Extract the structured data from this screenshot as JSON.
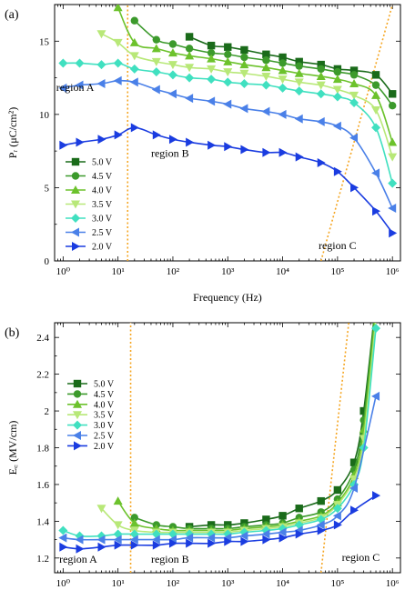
{
  "chart_data": [
    {
      "type": "line",
      "panel_label": "(a)",
      "xscale": "log",
      "xlim": [
        0.7,
        1400000
      ],
      "ylim": [
        0,
        17.5
      ],
      "xticks": [
        1,
        10,
        100,
        1000,
        10000,
        100000,
        1000000
      ],
      "xtick_labels": [
        "10⁰",
        "10¹",
        "10²",
        "10³",
        "10⁴",
        "10⁵",
        "10⁶"
      ],
      "yticks": [
        0,
        5,
        10,
        15
      ],
      "ytick_labels": [
        "0",
        "5",
        "10",
        "15"
      ],
      "xlabel": "Frequency (Hz)",
      "ylabel": "Pᵣ (μC/cm²)",
      "legend_position": "bottom-left",
      "grid": false,
      "series": [
        {
          "name": "5.0 V",
          "color": "#1a6b1a",
          "marker": "square",
          "x": [
            200,
            500,
            1000,
            2000,
            5000,
            10000,
            20000,
            50000,
            100000,
            200000,
            500000,
            1000000
          ],
          "y": [
            15.3,
            14.7,
            14.6,
            14.4,
            14.1,
            13.9,
            13.6,
            13.4,
            13.1,
            13.0,
            12.7,
            11.4
          ]
        },
        {
          "name": "4.5 V",
          "color": "#3c9a2c",
          "marker": "circle",
          "x": [
            20,
            50,
            100,
            200,
            500,
            1000,
            2000,
            5000,
            10000,
            20000,
            50000,
            100000,
            200000,
            500000,
            1000000
          ],
          "y": [
            16.4,
            15.1,
            14.8,
            14.5,
            14.2,
            14.1,
            13.9,
            13.7,
            13.5,
            13.3,
            13.1,
            12.9,
            12.7,
            12.0,
            10.6
          ]
        },
        {
          "name": "4.0 V",
          "color": "#6cc22c",
          "marker": "triangle-up",
          "x": [
            10,
            20,
            50,
            100,
            200,
            500,
            1000,
            2000,
            5000,
            10000,
            20000,
            50000,
            100000,
            200000,
            500000,
            1000000
          ],
          "y": [
            17.3,
            14.9,
            14.5,
            14.2,
            14.0,
            13.8,
            13.6,
            13.4,
            13.2,
            13.0,
            12.8,
            12.6,
            12.4,
            12.1,
            11.3,
            8.1
          ]
        },
        {
          "name": "3.5 V",
          "color": "#b8e878",
          "marker": "triangle-down",
          "x": [
            5,
            10,
            20,
            50,
            100,
            200,
            500,
            1000,
            2000,
            5000,
            10000,
            20000,
            50000,
            100000,
            200000,
            500000,
            1000000
          ],
          "y": [
            15.5,
            14.9,
            14.0,
            13.6,
            13.4,
            13.2,
            13.1,
            12.9,
            12.8,
            12.6,
            12.4,
            12.2,
            12.0,
            11.7,
            11.3,
            10.3,
            7.1
          ]
        },
        {
          "name": "3.0 V",
          "color": "#40e0c0",
          "marker": "diamond",
          "x": [
            1,
            2,
            5,
            10,
            20,
            50,
            100,
            200,
            500,
            1000,
            2000,
            5000,
            10000,
            20000,
            50000,
            100000,
            200000,
            500000,
            1000000
          ],
          "y": [
            13.5,
            13.5,
            13.4,
            13.5,
            13.1,
            12.9,
            12.7,
            12.5,
            12.4,
            12.2,
            12.1,
            12.0,
            11.8,
            11.6,
            11.4,
            11.2,
            10.8,
            9.1,
            5.3
          ]
        },
        {
          "name": "2.5 V",
          "color": "#4a80e8",
          "marker": "triangle-left",
          "x": [
            1,
            2,
            5,
            10,
            20,
            50,
            100,
            200,
            500,
            1000,
            2000,
            5000,
            10000,
            20000,
            50000,
            100000,
            200000,
            500000,
            1000000
          ],
          "y": [
            11.8,
            12.0,
            12.1,
            12.3,
            12.2,
            11.7,
            11.4,
            11.1,
            10.9,
            10.7,
            10.4,
            10.2,
            10.0,
            9.7,
            9.5,
            9.2,
            8.4,
            6.0,
            3.6
          ]
        },
        {
          "name": "2.0 V",
          "color": "#1a3ce0",
          "marker": "triangle-right",
          "x": [
            1,
            2,
            5,
            10,
            20,
            50,
            100,
            200,
            500,
            1000,
            2000,
            5000,
            10000,
            20000,
            50000,
            100000,
            200000,
            500000,
            1000000
          ],
          "y": [
            7.9,
            8.1,
            8.3,
            8.6,
            9.1,
            8.6,
            8.3,
            8.1,
            7.9,
            7.8,
            7.6,
            7.4,
            7.4,
            7.1,
            6.7,
            6.1,
            5.0,
            3.4,
            1.9
          ]
        }
      ],
      "annotations": [
        {
          "text": "region A",
          "x": 0.75,
          "y": 11.6
        },
        {
          "text": "region B",
          "x": 40,
          "y": 7.1
        },
        {
          "text": "region C",
          "x": 45000,
          "y": 0.8
        }
      ],
      "boundaries": [
        {
          "x": [
            15,
            15
          ],
          "y": [
            0,
            17.5
          ]
        },
        {
          "x": [
            50000,
            1000000
          ],
          "y": [
            0,
            17.5
          ]
        }
      ]
    },
    {
      "type": "line",
      "panel_label": "(b)",
      "xscale": "log",
      "xlim": [
        0.7,
        1400000
      ],
      "ylim": [
        1.12,
        2.48
      ],
      "xticks": [
        1,
        10,
        100,
        1000,
        10000,
        100000,
        1000000
      ],
      "xtick_labels": [
        "10⁰",
        "10¹",
        "10²",
        "10³",
        "10⁴",
        "10⁵",
        "10⁶"
      ],
      "yticks": [
        1.2,
        1.4,
        1.6,
        1.8,
        2.0,
        2.2,
        2.4
      ],
      "ytick_labels": [
        "1.2",
        "1.4",
        "1.6",
        "1.8",
        "2",
        "2.2",
        "2.4"
      ],
      "ylabel": "E꜀ (MV/cm)",
      "legend_position": "top-left",
      "grid": false,
      "series": [
        {
          "name": "5.0 V",
          "color": "#1a6b1a",
          "marker": "square",
          "x": [
            200,
            500,
            1000,
            2000,
            5000,
            10000,
            20000,
            50000,
            100000,
            200000,
            300000,
            500000
          ],
          "y": [
            1.37,
            1.38,
            1.38,
            1.39,
            1.41,
            1.43,
            1.47,
            1.51,
            1.57,
            1.72,
            2.0,
            2.6
          ]
        },
        {
          "name": "4.5 V",
          "color": "#3c9a2c",
          "marker": "circle",
          "x": [
            20,
            50,
            100,
            200,
            500,
            1000,
            2000,
            5000,
            10000,
            20000,
            50000,
            100000,
            200000,
            300000,
            500000
          ],
          "y": [
            1.42,
            1.38,
            1.37,
            1.36,
            1.36,
            1.36,
            1.37,
            1.38,
            1.39,
            1.42,
            1.45,
            1.52,
            1.68,
            1.95,
            2.6
          ]
        },
        {
          "name": "4.0 V",
          "color": "#6cc22c",
          "marker": "triangle-up",
          "x": [
            10,
            20,
            50,
            100,
            200,
            500,
            1000,
            2000,
            5000,
            10000,
            20000,
            50000,
            100000,
            200000,
            300000,
            500000
          ],
          "y": [
            1.51,
            1.39,
            1.36,
            1.35,
            1.35,
            1.35,
            1.35,
            1.36,
            1.37,
            1.38,
            1.4,
            1.43,
            1.5,
            1.65,
            1.9,
            2.55
          ]
        },
        {
          "name": "3.5 V",
          "color": "#b8e878",
          "marker": "triangle-down",
          "x": [
            5,
            10,
            20,
            50,
            100,
            200,
            500,
            1000,
            2000,
            5000,
            10000,
            20000,
            50000,
            100000,
            200000,
            300000,
            500000
          ],
          "y": [
            1.47,
            1.38,
            1.35,
            1.34,
            1.34,
            1.34,
            1.34,
            1.34,
            1.35,
            1.36,
            1.37,
            1.39,
            1.42,
            1.49,
            1.63,
            1.85,
            2.5
          ]
        },
        {
          "name": "3.0 V",
          "color": "#40e0c0",
          "marker": "diamond",
          "x": [
            1,
            2,
            5,
            10,
            20,
            50,
            100,
            200,
            500,
            1000,
            2000,
            5000,
            10000,
            20000,
            50000,
            100000,
            200000,
            300000,
            500000
          ],
          "y": [
            1.35,
            1.32,
            1.32,
            1.33,
            1.33,
            1.33,
            1.33,
            1.33,
            1.33,
            1.33,
            1.34,
            1.35,
            1.36,
            1.38,
            1.41,
            1.47,
            1.6,
            1.8,
            2.45
          ]
        },
        {
          "name": "2.5 V",
          "color": "#4a80e8",
          "marker": "triangle-left",
          "x": [
            1,
            2,
            5,
            10,
            20,
            50,
            100,
            200,
            500,
            1000,
            2000,
            5000,
            10000,
            20000,
            50000,
            100000,
            200000,
            500000
          ],
          "y": [
            1.31,
            1.3,
            1.3,
            1.3,
            1.3,
            1.3,
            1.3,
            1.31,
            1.31,
            1.31,
            1.32,
            1.33,
            1.34,
            1.35,
            1.38,
            1.43,
            1.58,
            2.08
          ]
        },
        {
          "name": "2.0 V",
          "color": "#1a3ce0",
          "marker": "triangle-right",
          "x": [
            1,
            2,
            5,
            10,
            20,
            50,
            100,
            200,
            500,
            1000,
            2000,
            5000,
            10000,
            20000,
            50000,
            100000,
            200000,
            500000
          ],
          "y": [
            1.26,
            1.25,
            1.26,
            1.27,
            1.27,
            1.27,
            1.28,
            1.28,
            1.28,
            1.29,
            1.29,
            1.3,
            1.31,
            1.33,
            1.35,
            1.38,
            1.46,
            1.54
          ]
        }
      ],
      "annotations": [
        {
          "text": "region A",
          "x": 0.85,
          "y": 1.175
        },
        {
          "text": "region B",
          "x": 40,
          "y": 1.175
        },
        {
          "text": "region C",
          "x": 120000,
          "y": 1.185
        }
      ],
      "boundaries": [
        {
          "x": [
            17,
            17
          ],
          "y": [
            1.12,
            2.48
          ]
        },
        {
          "x": [
            50000,
            160000
          ],
          "y": [
            1.12,
            2.48
          ]
        }
      ]
    }
  ]
}
